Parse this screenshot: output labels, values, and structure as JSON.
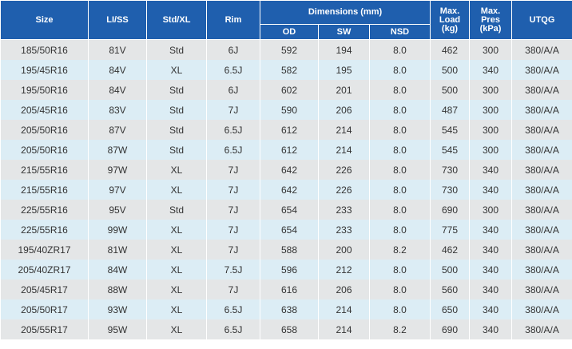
{
  "header": {
    "group": "Dimensions (mm)",
    "columns": [
      "Size",
      "LI/SS",
      "Std/XL",
      "Rim",
      "OD",
      "SW",
      "NSD",
      "Max.\nLoad\n(kg)",
      "Max.\nPres\n(kPa)",
      "UTQG"
    ]
  },
  "table": {
    "rows": [
      [
        "185/50R16",
        "81V",
        "Std",
        "6J",
        "592",
        "194",
        "8.0",
        "462",
        "300",
        "380/A/A"
      ],
      [
        "195/45R16",
        "84V",
        "XL",
        "6.5J",
        "582",
        "195",
        "8.0",
        "500",
        "340",
        "380/A/A"
      ],
      [
        "195/50R16",
        "84V",
        "Std",
        "6J",
        "602",
        "201",
        "8.0",
        "500",
        "300",
        "380/A/A"
      ],
      [
        "205/45R16",
        "83V",
        "Std",
        "7J",
        "590",
        "206",
        "8.0",
        "487",
        "300",
        "380/A/A"
      ],
      [
        "205/50R16",
        "87V",
        "Std",
        "6.5J",
        "612",
        "214",
        "8.0",
        "545",
        "300",
        "380/A/A"
      ],
      [
        "205/50R16",
        "87W",
        "Std",
        "6.5J",
        "612",
        "214",
        "8.0",
        "545",
        "300",
        "380/A/A"
      ],
      [
        "215/55R16",
        "97W",
        "XL",
        "7J",
        "642",
        "226",
        "8.0",
        "730",
        "340",
        "380/A/A"
      ],
      [
        "215/55R16",
        "97V",
        "XL",
        "7J",
        "642",
        "226",
        "8.0",
        "730",
        "340",
        "380/A/A"
      ],
      [
        "225/55R16",
        "95V",
        "Std",
        "7J",
        "654",
        "233",
        "8.0",
        "690",
        "300",
        "380/A/A"
      ],
      [
        "225/55R16",
        "99W",
        "XL",
        "7J",
        "654",
        "233",
        "8.0",
        "775",
        "340",
        "380/A/A"
      ],
      [
        "195/40ZR17",
        "81W",
        "XL",
        "7J",
        "588",
        "200",
        "8.2",
        "462",
        "340",
        "380/A/A"
      ],
      [
        "205/40ZR17",
        "84W",
        "XL",
        "7.5J",
        "596",
        "212",
        "8.0",
        "500",
        "340",
        "380/A/A"
      ],
      [
        "205/45R17",
        "88W",
        "XL",
        "7J",
        "616",
        "206",
        "8.0",
        "560",
        "340",
        "380/A/A"
      ],
      [
        "205/50R17",
        "93W",
        "XL",
        "6.5J",
        "638",
        "214",
        "8.0",
        "650",
        "340",
        "380/A/A"
      ],
      [
        "205/55R17",
        "95W",
        "XL",
        "6.5J",
        "658",
        "214",
        "8.2",
        "690",
        "340",
        "380/A/A"
      ]
    ]
  }
}
